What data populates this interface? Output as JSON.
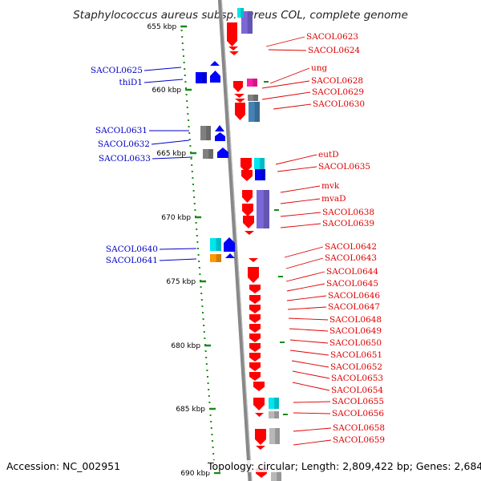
{
  "title": "Staphylococcus aureus subsp. aureus COL, complete genome",
  "accession": "Accession: NC_002951",
  "topology": "Topology: circular; Length: 2,809,422 bp; Genes: 2,684",
  "colors": {
    "backbone": "#888888",
    "forward_gene": "#ff0000",
    "reverse_gene": "#0000ff",
    "cyan_gene": "#00e5ee",
    "purple_gene": "#7b68d8",
    "gray_gene": "#808080",
    "orange_gene": "#ff9900",
    "magenta_gene": "#ff1ea8",
    "steel_gene": "#4682b4",
    "ruler": "#1a8a1a"
  },
  "ticks": [
    {
      "label": "655 kbp"
    },
    {
      "label": "660 kbp"
    },
    {
      "label": "665 kbp"
    },
    {
      "label": "670 kbp"
    },
    {
      "label": "675 kbp"
    },
    {
      "label": "680 kbp"
    },
    {
      "label": "685 kbp"
    },
    {
      "label": "690 kbp"
    }
  ],
  "genes_right": [
    {
      "name": "SACOL0623"
    },
    {
      "name": "SACOL0624"
    },
    {
      "name": "ung"
    },
    {
      "name": "SACOL0628"
    },
    {
      "name": "SACOL0629"
    },
    {
      "name": "SACOL0630"
    },
    {
      "name": "eutD"
    },
    {
      "name": "SACOL0635"
    },
    {
      "name": "mvk"
    },
    {
      "name": "mvaD"
    },
    {
      "name": "SACOL0638"
    },
    {
      "name": "SACOL0639"
    },
    {
      "name": "SACOL0642"
    },
    {
      "name": "SACOL0643"
    },
    {
      "name": "SACOL0644"
    },
    {
      "name": "SACOL0645"
    },
    {
      "name": "SACOL0646"
    },
    {
      "name": "SACOL0647"
    },
    {
      "name": "SACOL0648"
    },
    {
      "name": "SACOL0649"
    },
    {
      "name": "SACOL0650"
    },
    {
      "name": "SACOL0651"
    },
    {
      "name": "SACOL0652"
    },
    {
      "name": "SACOL0653"
    },
    {
      "name": "SACOL0654"
    },
    {
      "name": "SACOL0655"
    },
    {
      "name": "SACOL0656"
    },
    {
      "name": "SACOL0658"
    },
    {
      "name": "SACOL0659"
    }
  ],
  "genes_left": [
    {
      "name": "SACOL0625"
    },
    {
      "name": "thiD1"
    },
    {
      "name": "SACOL0631"
    },
    {
      "name": "SACOL0632"
    },
    {
      "name": "SACOL0633"
    },
    {
      "name": "SACOL0640"
    },
    {
      "name": "SACOL0641"
    }
  ]
}
